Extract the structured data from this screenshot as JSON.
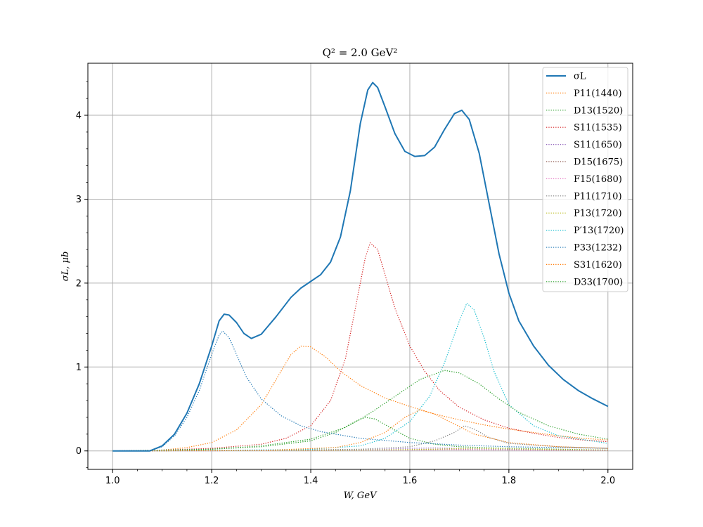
{
  "chart_data": {
    "type": "line",
    "title": "Q² = 2.0 GeV²",
    "xlabel": "W, GeV",
    "ylabel": "σL, μb",
    "xlim": [
      0.95,
      2.05
    ],
    "ylim": [
      -0.22,
      4.62
    ],
    "xticks": [
      "1.0",
      "1.2",
      "1.4",
      "1.6",
      "1.8",
      "2.0"
    ],
    "yticks": [
      "0",
      "1",
      "2",
      "3",
      "4"
    ],
    "grid": true,
    "legend_position": "top-right",
    "series": [
      {
        "name": "σL",
        "color": "#1f77b4",
        "style": "solid",
        "points": [
          [
            1.0,
            0
          ],
          [
            1.05,
            0
          ],
          [
            1.075,
            0.0
          ],
          [
            1.1,
            0.06
          ],
          [
            1.125,
            0.2
          ],
          [
            1.15,
            0.45
          ],
          [
            1.175,
            0.8
          ],
          [
            1.2,
            1.25
          ],
          [
            1.215,
            1.55
          ],
          [
            1.225,
            1.63
          ],
          [
            1.235,
            1.62
          ],
          [
            1.25,
            1.53
          ],
          [
            1.265,
            1.4
          ],
          [
            1.28,
            1.34
          ],
          [
            1.3,
            1.39
          ],
          [
            1.33,
            1.6
          ],
          [
            1.36,
            1.83
          ],
          [
            1.38,
            1.94
          ],
          [
            1.4,
            2.02
          ],
          [
            1.42,
            2.1
          ],
          [
            1.44,
            2.25
          ],
          [
            1.46,
            2.55
          ],
          [
            1.48,
            3.1
          ],
          [
            1.5,
            3.9
          ],
          [
            1.515,
            4.3
          ],
          [
            1.525,
            4.39
          ],
          [
            1.535,
            4.33
          ],
          [
            1.55,
            4.1
          ],
          [
            1.57,
            3.78
          ],
          [
            1.59,
            3.57
          ],
          [
            1.61,
            3.51
          ],
          [
            1.63,
            3.52
          ],
          [
            1.65,
            3.62
          ],
          [
            1.67,
            3.83
          ],
          [
            1.69,
            4.02
          ],
          [
            1.705,
            4.06
          ],
          [
            1.72,
            3.95
          ],
          [
            1.74,
            3.55
          ],
          [
            1.76,
            2.95
          ],
          [
            1.78,
            2.35
          ],
          [
            1.8,
            1.88
          ],
          [
            1.82,
            1.55
          ],
          [
            1.85,
            1.25
          ],
          [
            1.88,
            1.02
          ],
          [
            1.91,
            0.85
          ],
          [
            1.94,
            0.72
          ],
          [
            1.97,
            0.62
          ],
          [
            2.0,
            0.53
          ]
        ]
      },
      {
        "name": "P11(1440)",
        "color": "#ff7f0e",
        "style": "dotted",
        "points": [
          [
            1.0,
            0
          ],
          [
            1.08,
            0
          ],
          [
            1.1,
            0.01
          ],
          [
            1.15,
            0.04
          ],
          [
            1.2,
            0.1
          ],
          [
            1.25,
            0.25
          ],
          [
            1.3,
            0.55
          ],
          [
            1.33,
            0.85
          ],
          [
            1.36,
            1.15
          ],
          [
            1.38,
            1.25
          ],
          [
            1.4,
            1.24
          ],
          [
            1.43,
            1.12
          ],
          [
            1.46,
            0.95
          ],
          [
            1.5,
            0.78
          ],
          [
            1.55,
            0.63
          ],
          [
            1.6,
            0.53
          ],
          [
            1.65,
            0.44
          ],
          [
            1.7,
            0.37
          ],
          [
            1.75,
            0.31
          ],
          [
            1.8,
            0.26
          ],
          [
            1.85,
            0.22
          ],
          [
            1.9,
            0.18
          ],
          [
            1.95,
            0.15
          ],
          [
            2.0,
            0.13
          ]
        ]
      },
      {
        "name": "D13(1520)",
        "color": "#2ca02c",
        "style": "dotted",
        "points": [
          [
            1.0,
            0
          ],
          [
            1.1,
            0
          ],
          [
            1.2,
            0.02
          ],
          [
            1.3,
            0.05
          ],
          [
            1.4,
            0.12
          ],
          [
            1.45,
            0.22
          ],
          [
            1.48,
            0.32
          ],
          [
            1.51,
            0.4
          ],
          [
            1.53,
            0.38
          ],
          [
            1.56,
            0.28
          ],
          [
            1.6,
            0.15
          ],
          [
            1.65,
            0.08
          ],
          [
            1.7,
            0.05
          ],
          [
            1.8,
            0.03
          ],
          [
            1.9,
            0.02
          ],
          [
            2.0,
            0.01
          ]
        ]
      },
      {
        "name": "S11(1535)",
        "color": "#d62728",
        "style": "dotted",
        "points": [
          [
            1.0,
            0
          ],
          [
            1.1,
            0.01
          ],
          [
            1.2,
            0.03
          ],
          [
            1.3,
            0.08
          ],
          [
            1.35,
            0.15
          ],
          [
            1.4,
            0.3
          ],
          [
            1.44,
            0.6
          ],
          [
            1.47,
            1.1
          ],
          [
            1.49,
            1.7
          ],
          [
            1.51,
            2.3
          ],
          [
            1.52,
            2.48
          ],
          [
            1.535,
            2.4
          ],
          [
            1.55,
            2.1
          ],
          [
            1.57,
            1.7
          ],
          [
            1.6,
            1.25
          ],
          [
            1.63,
            0.95
          ],
          [
            1.66,
            0.72
          ],
          [
            1.7,
            0.52
          ],
          [
            1.75,
            0.37
          ],
          [
            1.8,
            0.27
          ],
          [
            1.85,
            0.21
          ],
          [
            1.9,
            0.16
          ],
          [
            1.95,
            0.13
          ],
          [
            2.0,
            0.11
          ]
        ]
      },
      {
        "name": "S11(1650)",
        "color": "#9467bd",
        "style": "dotted",
        "points": [
          [
            1.0,
            0
          ],
          [
            1.2,
            0.005
          ],
          [
            1.4,
            0.01
          ],
          [
            1.5,
            0.015
          ],
          [
            1.6,
            0.03
          ],
          [
            1.65,
            0.035
          ],
          [
            1.7,
            0.03
          ],
          [
            1.8,
            0.02
          ],
          [
            1.9,
            0.015
          ],
          [
            2.0,
            0.01
          ]
        ]
      },
      {
        "name": "D15(1675)",
        "color": "#8c564b",
        "style": "dotted",
        "points": [
          [
            1.0,
            0
          ],
          [
            1.2,
            0.002
          ],
          [
            1.4,
            0.005
          ],
          [
            1.6,
            0.015
          ],
          [
            1.675,
            0.02
          ],
          [
            1.75,
            0.015
          ],
          [
            1.9,
            0.01
          ],
          [
            2.0,
            0.006
          ]
        ]
      },
      {
        "name": "F15(1680)",
        "color": "#e377c2",
        "style": "dotted",
        "points": [
          [
            1.0,
            0
          ],
          [
            1.2,
            0.002
          ],
          [
            1.4,
            0.004
          ],
          [
            1.6,
            0.01
          ],
          [
            1.68,
            0.015
          ],
          [
            1.8,
            0.01
          ],
          [
            2.0,
            0.005
          ]
        ]
      },
      {
        "name": "P11(1710)",
        "color": "#7f7f7f",
        "style": "dotted",
        "points": [
          [
            1.0,
            0
          ],
          [
            1.3,
            0.005
          ],
          [
            1.5,
            0.02
          ],
          [
            1.6,
            0.05
          ],
          [
            1.65,
            0.12
          ],
          [
            1.69,
            0.22
          ],
          [
            1.71,
            0.3
          ],
          [
            1.73,
            0.26
          ],
          [
            1.76,
            0.16
          ],
          [
            1.8,
            0.09
          ],
          [
            1.9,
            0.05
          ],
          [
            2.0,
            0.03
          ]
        ]
      },
      {
        "name": "P13(1720)",
        "color": "#bcbd22",
        "style": "dotted",
        "points": [
          [
            1.0,
            0
          ],
          [
            1.3,
            0.005
          ],
          [
            1.5,
            0.01
          ],
          [
            1.65,
            0.02
          ],
          [
            1.72,
            0.03
          ],
          [
            1.8,
            0.025
          ],
          [
            1.9,
            0.015
          ],
          [
            2.0,
            0.01
          ]
        ]
      },
      {
        "name": "P′13(1720)",
        "color": "#17becf",
        "style": "dotted",
        "points": [
          [
            1.0,
            0
          ],
          [
            1.2,
            0.005
          ],
          [
            1.4,
            0.02
          ],
          [
            1.5,
            0.06
          ],
          [
            1.55,
            0.15
          ],
          [
            1.6,
            0.35
          ],
          [
            1.64,
            0.65
          ],
          [
            1.67,
            1.05
          ],
          [
            1.7,
            1.55
          ],
          [
            1.715,
            1.76
          ],
          [
            1.73,
            1.68
          ],
          [
            1.75,
            1.35
          ],
          [
            1.77,
            0.95
          ],
          [
            1.8,
            0.55
          ],
          [
            1.85,
            0.3
          ],
          [
            1.9,
            0.18
          ],
          [
            2.0,
            0.09
          ]
        ]
      },
      {
        "name": "P33(1232)",
        "color": "#1f77b4",
        "style": "dotted",
        "points": [
          [
            1.0,
            0
          ],
          [
            1.075,
            0
          ],
          [
            1.1,
            0.05
          ],
          [
            1.125,
            0.18
          ],
          [
            1.15,
            0.4
          ],
          [
            1.175,
            0.72
          ],
          [
            1.2,
            1.15
          ],
          [
            1.215,
            1.38
          ],
          [
            1.222,
            1.43
          ],
          [
            1.235,
            1.35
          ],
          [
            1.25,
            1.15
          ],
          [
            1.27,
            0.88
          ],
          [
            1.3,
            0.62
          ],
          [
            1.34,
            0.42
          ],
          [
            1.38,
            0.3
          ],
          [
            1.42,
            0.23
          ],
          [
            1.5,
            0.15
          ],
          [
            1.6,
            0.1
          ],
          [
            1.7,
            0.07
          ],
          [
            1.8,
            0.05
          ],
          [
            1.9,
            0.04
          ],
          [
            2.0,
            0.03
          ]
        ]
      },
      {
        "name": "S31(1620)",
        "color": "#ff7f0e",
        "style": "dotted",
        "points": [
          [
            1.0,
            0
          ],
          [
            1.3,
            0.005
          ],
          [
            1.45,
            0.04
          ],
          [
            1.5,
            0.1
          ],
          [
            1.55,
            0.22
          ],
          [
            1.59,
            0.4
          ],
          [
            1.62,
            0.49
          ],
          [
            1.65,
            0.44
          ],
          [
            1.69,
            0.32
          ],
          [
            1.73,
            0.2
          ],
          [
            1.8,
            0.1
          ],
          [
            1.9,
            0.05
          ],
          [
            2.0,
            0.03
          ]
        ]
      },
      {
        "name": "D33(1700)",
        "color": "#2ca02c",
        "style": "dotted",
        "points": [
          [
            1.0,
            0
          ],
          [
            1.2,
            0.02
          ],
          [
            1.3,
            0.06
          ],
          [
            1.4,
            0.14
          ],
          [
            1.47,
            0.28
          ],
          [
            1.52,
            0.45
          ],
          [
            1.57,
            0.65
          ],
          [
            1.62,
            0.85
          ],
          [
            1.67,
            0.96
          ],
          [
            1.7,
            0.93
          ],
          [
            1.74,
            0.8
          ],
          [
            1.78,
            0.62
          ],
          [
            1.82,
            0.46
          ],
          [
            1.88,
            0.3
          ],
          [
            1.94,
            0.2
          ],
          [
            2.0,
            0.14
          ]
        ]
      }
    ]
  }
}
